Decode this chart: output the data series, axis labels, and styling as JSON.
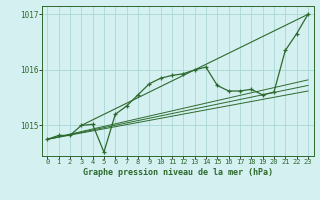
{
  "title": "Graphe pression niveau de la mer (hPa)",
  "background_color": "#d4f0f0",
  "grid_color": "#a8d8d8",
  "line_color": "#2d6a2d",
  "xlim": [
    -0.5,
    23.5
  ],
  "ylim": [
    1014.45,
    1017.15
  ],
  "yticks": [
    1015,
    1016,
    1017
  ],
  "xticks": [
    0,
    1,
    2,
    3,
    4,
    5,
    6,
    7,
    8,
    9,
    10,
    11,
    12,
    13,
    14,
    15,
    16,
    17,
    18,
    19,
    20,
    21,
    22,
    23
  ],
  "hours": [
    0,
    1,
    2,
    3,
    4,
    5,
    6,
    7,
    8,
    9,
    10,
    11,
    12,
    13,
    14,
    15,
    16,
    17,
    18,
    19,
    20,
    21,
    22,
    23
  ],
  "pressure_main": [
    1014.75,
    1014.82,
    1014.82,
    1015.0,
    1015.02,
    1014.52,
    1015.2,
    1015.35,
    1015.55,
    1015.75,
    1015.85,
    1015.9,
    1015.93,
    1016.0,
    1016.05,
    1015.72,
    1015.62,
    1015.62,
    1015.65,
    1015.55,
    1015.6,
    1016.35,
    1016.65,
    1017.0
  ],
  "ref_line1_x": [
    0,
    23
  ],
  "ref_line1_y": [
    1014.75,
    1015.62
  ],
  "ref_line2_x": [
    0,
    23
  ],
  "ref_line2_y": [
    1014.75,
    1015.72
  ],
  "ref_line3_x": [
    0,
    23
  ],
  "ref_line3_y": [
    1014.75,
    1015.82
  ],
  "ref_line4_x": [
    3,
    23
  ],
  "ref_line4_y": [
    1015.0,
    1017.0
  ]
}
